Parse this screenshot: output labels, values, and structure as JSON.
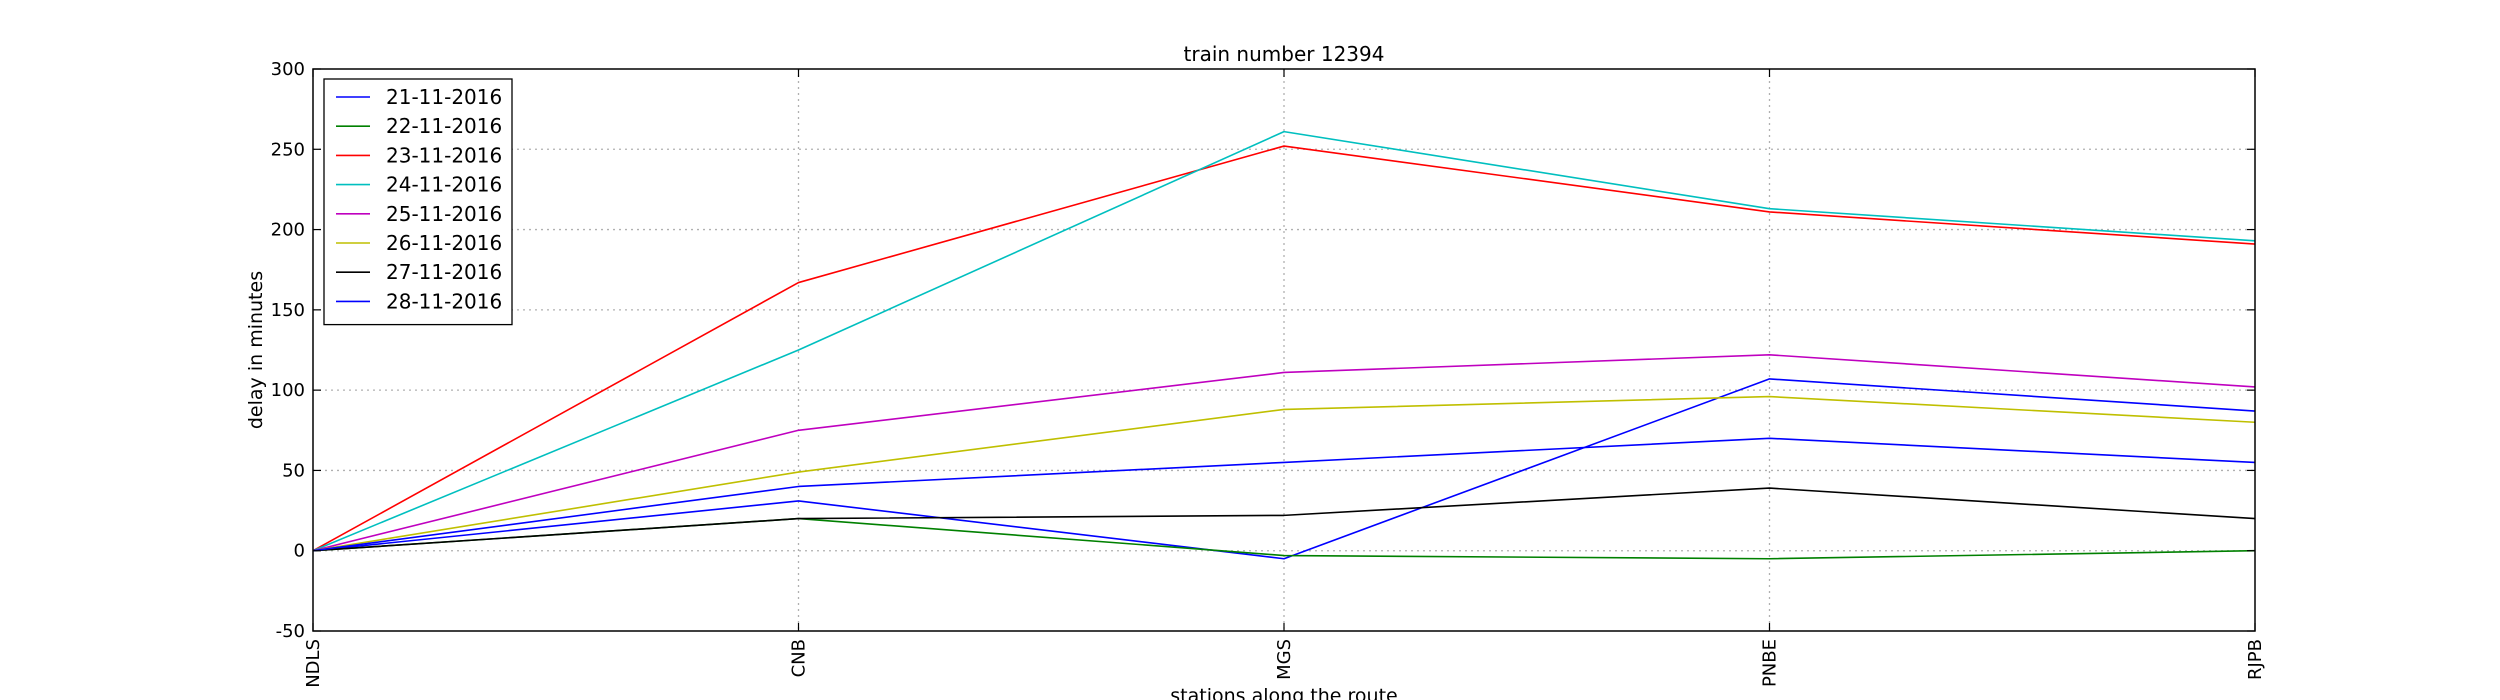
{
  "chart_data": {
    "type": "line",
    "title": "train number 12394",
    "xlabel": "stations along the route",
    "ylabel": "delay in minutes",
    "categories": [
      "NDLS",
      "CNB",
      "MGS",
      "PNBE",
      "RJPB"
    ],
    "ylim": [
      -50,
      300
    ],
    "yticks": [
      -50,
      0,
      50,
      100,
      150,
      200,
      250,
      300
    ],
    "grid": true,
    "legend_position": "top-left",
    "series": [
      {
        "name": "21-11-2016",
        "color": "#0000ff",
        "values": [
          0,
          31,
          -5,
          107,
          87
        ]
      },
      {
        "name": "22-11-2016",
        "color": "#008000",
        "values": [
          0,
          20,
          -3,
          -5,
          0
        ]
      },
      {
        "name": "23-11-2016",
        "color": "#ff0000",
        "values": [
          0,
          167,
          252,
          211,
          191
        ]
      },
      {
        "name": "24-11-2016",
        "color": "#00bfbf",
        "values": [
          0,
          125,
          261,
          213,
          193
        ]
      },
      {
        "name": "25-11-2016",
        "color": "#bf00bf",
        "values": [
          0,
          75,
          111,
          122,
          102
        ]
      },
      {
        "name": "26-11-2016",
        "color": "#bfbf00",
        "values": [
          0,
          49,
          88,
          96,
          80
        ]
      },
      {
        "name": "27-11-2016",
        "color": "#000000",
        "values": [
          0,
          20,
          22,
          39,
          20
        ]
      },
      {
        "name": "28-11-2016",
        "color": "#0000ff",
        "values": [
          0,
          40,
          55,
          70,
          55
        ]
      }
    ]
  }
}
